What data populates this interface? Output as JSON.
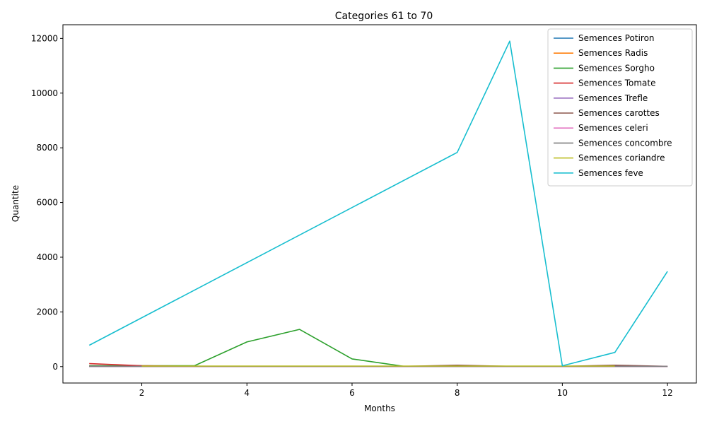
{
  "chart_data": {
    "type": "line",
    "title": "Categories 61 to 70",
    "xlabel": "Months",
    "ylabel": "Quantite",
    "xlim": [
      0.5,
      12.55
    ],
    "ylim": [
      -600,
      12500
    ],
    "xticks": [
      2,
      4,
      6,
      8,
      10,
      12
    ],
    "yticks": [
      0,
      2000,
      4000,
      6000,
      8000,
      10000,
      12000
    ],
    "grid": false,
    "legend_position": "top-right",
    "series": [
      {
        "name": "Semences Potiron",
        "color": "#1f77b4",
        "x": [
          1,
          2,
          3,
          4,
          5,
          6,
          7,
          8,
          9,
          10,
          11,
          12
        ],
        "y": [
          5,
          3,
          2,
          2,
          2,
          2,
          2,
          2,
          2,
          2,
          2,
          2
        ]
      },
      {
        "name": "Semences Radis",
        "color": "#ff7f0e",
        "x": [
          1,
          2,
          3,
          4,
          5,
          6,
          7,
          8,
          9,
          10,
          11
        ],
        "y": [
          15,
          10,
          10,
          10,
          10,
          10,
          10,
          10,
          10,
          10,
          10
        ]
      },
      {
        "name": "Semences Sorgho",
        "color": "#2ca02c",
        "x": [
          1,
          2,
          3,
          4,
          5,
          6,
          7,
          8,
          9,
          10,
          11,
          12
        ],
        "y": [
          30,
          30,
          30,
          900,
          1360,
          280,
          5,
          5,
          5,
          5,
          5,
          5
        ]
      },
      {
        "name": "Semences Tomate",
        "color": "#d62728",
        "x": [
          1,
          2,
          3,
          4,
          5,
          6,
          7,
          8,
          9,
          10,
          11,
          12
        ],
        "y": [
          110,
          30,
          5,
          5,
          5,
          5,
          5,
          5,
          5,
          5,
          5,
          5
        ]
      },
      {
        "name": "Semences Trefle",
        "color": "#9467bd",
        "x": [
          1,
          2,
          3,
          4,
          5,
          6,
          7,
          8,
          9,
          10,
          11,
          12
        ],
        "y": [
          5,
          5,
          5,
          5,
          5,
          5,
          5,
          5,
          5,
          5,
          5,
          5
        ]
      },
      {
        "name": "Semences carottes",
        "color": "#8c564b",
        "x": [
          1,
          2,
          3,
          4,
          5,
          6,
          7,
          8,
          9,
          10,
          11,
          12
        ],
        "y": [
          10,
          10,
          10,
          10,
          10,
          10,
          10,
          50,
          10,
          10,
          50,
          10
        ]
      },
      {
        "name": "Semences celeri",
        "color": "#e377c2",
        "x": [
          1,
          2,
          3,
          4,
          5,
          6,
          7,
          8,
          9,
          10,
          11,
          12
        ],
        "y": [
          5,
          5,
          5,
          5,
          5,
          5,
          5,
          5,
          5,
          5,
          5,
          5
        ]
      },
      {
        "name": "Semences concombre",
        "color": "#7f7f7f",
        "x": [
          1,
          2,
          3,
          4,
          5,
          6,
          7,
          8,
          9,
          10,
          11,
          12
        ],
        "y": [
          10,
          10,
          10,
          10,
          10,
          10,
          10,
          10,
          10,
          10,
          10,
          10
        ]
      },
      {
        "name": "Semences coriandre",
        "color": "#bcbd22",
        "x": [
          2,
          3,
          4,
          5,
          6,
          7,
          8,
          9,
          10,
          11
        ],
        "y": [
          20,
          20,
          20,
          20,
          20,
          20,
          20,
          20,
          20,
          20
        ]
      },
      {
        "name": "Semences feve",
        "color": "#17becf",
        "x": [
          1,
          8,
          9,
          10,
          11,
          12
        ],
        "y": [
          780,
          7830,
          11900,
          30,
          520,
          3480
        ]
      }
    ]
  }
}
